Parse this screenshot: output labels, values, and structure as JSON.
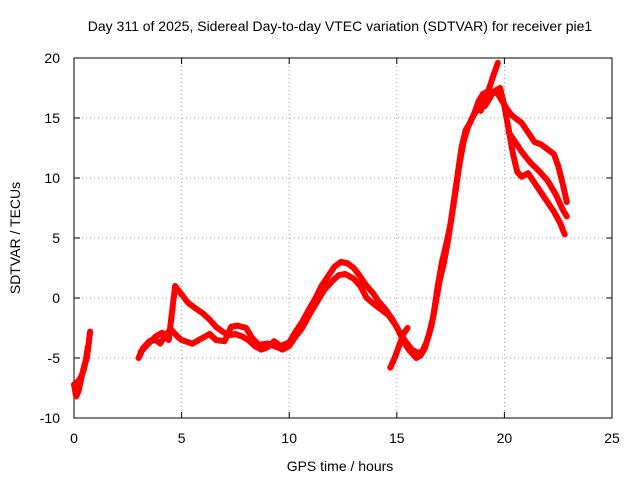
{
  "chart_data": {
    "type": "scatter",
    "title": "Day 311 of 2025, Sidereal Day-to-day VTEC variation (SDTVAR) for receiver pie1",
    "xlabel": "GPS time / hours",
    "ylabel": "SDTVAR / TECUs",
    "xlim": [
      0,
      25
    ],
    "ylim": [
      -10,
      20
    ],
    "xticks": [
      0,
      5,
      10,
      15,
      20,
      25
    ],
    "yticks": [
      -10,
      -5,
      0,
      5,
      10,
      15,
      20
    ],
    "grid": true,
    "marker": "+",
    "color": "#ff0000",
    "series": [
      {
        "name": "segment-1",
        "points": [
          [
            0.0,
            -7.2
          ],
          [
            0.1,
            -8.2
          ],
          [
            0.2,
            -7.8
          ],
          [
            0.3,
            -7.0
          ],
          [
            0.4,
            -6.2
          ],
          [
            0.5,
            -5.5
          ],
          [
            0.6,
            -5.0
          ],
          [
            0.7,
            -3.5
          ],
          [
            0.75,
            -2.8
          ]
        ]
      },
      {
        "name": "segment-1b",
        "points": [
          [
            0.05,
            -7.5
          ],
          [
            0.15,
            -7.0
          ],
          [
            0.25,
            -6.8
          ],
          [
            0.35,
            -6.5
          ],
          [
            0.45,
            -6.0
          ],
          [
            0.55,
            -5.2
          ],
          [
            0.65,
            -4.0
          ]
        ]
      },
      {
        "name": "segment-2",
        "points": [
          [
            3.0,
            -5.0
          ],
          [
            3.2,
            -4.2
          ],
          [
            3.5,
            -3.6
          ],
          [
            3.8,
            -3.5
          ],
          [
            4.0,
            -3.8
          ],
          [
            4.3,
            -3.0
          ],
          [
            4.5,
            -2.6
          ],
          [
            4.8,
            -3.2
          ],
          [
            5.0,
            -3.5
          ],
          [
            5.5,
            -3.8
          ],
          [
            6.0,
            -3.3
          ],
          [
            6.3,
            -3.0
          ],
          [
            6.6,
            -3.5
          ],
          [
            7.0,
            -3.6
          ],
          [
            7.3,
            -2.4
          ],
          [
            7.6,
            -2.3
          ],
          [
            8.0,
            -2.5
          ],
          [
            8.3,
            -3.4
          ],
          [
            8.6,
            -3.9
          ],
          [
            9.0,
            -3.8
          ],
          [
            9.3,
            -4.0
          ],
          [
            9.7,
            -4.3
          ],
          [
            10.0,
            -4.0
          ],
          [
            10.3,
            -3.2
          ],
          [
            10.6,
            -2.5
          ],
          [
            11.0,
            -1.2
          ],
          [
            11.3,
            -0.3
          ],
          [
            11.6,
            0.6
          ],
          [
            12.0,
            1.4
          ],
          [
            12.3,
            1.9
          ],
          [
            12.6,
            2.0
          ],
          [
            13.0,
            1.6
          ],
          [
            13.3,
            1.0
          ],
          [
            13.6,
            0.0
          ],
          [
            14.0,
            -0.6
          ],
          [
            14.3,
            -1.0
          ],
          [
            14.6,
            -1.4
          ],
          [
            15.0,
            -2.4
          ],
          [
            15.3,
            -3.6
          ],
          [
            15.6,
            -4.4
          ],
          [
            15.9,
            -5.0
          ],
          [
            16.1,
            -4.8
          ],
          [
            16.3,
            -4.2
          ],
          [
            16.5,
            -3.0
          ],
          [
            16.7,
            -1.5
          ],
          [
            16.9,
            1.0
          ],
          [
            17.1,
            3.0
          ],
          [
            17.3,
            4.5
          ],
          [
            17.5,
            6.2
          ],
          [
            17.7,
            8.5
          ],
          [
            17.9,
            11.0
          ],
          [
            18.1,
            13.0
          ],
          [
            18.3,
            14.2
          ],
          [
            18.5,
            15.0
          ],
          [
            18.7,
            15.6
          ],
          [
            18.9,
            16.0
          ],
          [
            19.1,
            16.0
          ],
          [
            19.3,
            16.6
          ],
          [
            19.5,
            17.2
          ],
          [
            19.7,
            17.0
          ],
          [
            19.9,
            16.4
          ],
          [
            20.1,
            15.8
          ],
          [
            20.3,
            15.3
          ],
          [
            20.5,
            15.0
          ],
          [
            20.8,
            14.6
          ],
          [
            21.1,
            13.8
          ],
          [
            21.4,
            13.0
          ],
          [
            21.7,
            12.8
          ],
          [
            22.0,
            12.4
          ],
          [
            22.3,
            12.0
          ],
          [
            22.5,
            11.0
          ],
          [
            22.7,
            9.6
          ],
          [
            22.9,
            8.0
          ]
        ]
      },
      {
        "name": "segment-3",
        "points": [
          [
            3.1,
            -4.5
          ],
          [
            3.4,
            -3.9
          ],
          [
            3.8,
            -3.2
          ],
          [
            4.1,
            -2.9
          ],
          [
            4.4,
            -3.5
          ],
          [
            4.7,
            1.0
          ],
          [
            5.0,
            0.3
          ],
          [
            5.3,
            -0.4
          ],
          [
            5.6,
            -0.8
          ],
          [
            6.0,
            -1.3
          ],
          [
            6.3,
            -1.8
          ],
          [
            6.6,
            -2.4
          ],
          [
            6.9,
            -2.8
          ],
          [
            7.2,
            -3.1
          ],
          [
            7.5,
            -3.0
          ],
          [
            7.8,
            -3.2
          ],
          [
            8.1,
            -3.5
          ],
          [
            8.4,
            -4.0
          ],
          [
            8.7,
            -4.3
          ],
          [
            9.0,
            -4.1
          ],
          [
            9.3,
            -3.6
          ],
          [
            9.6,
            -4.0
          ],
          [
            10.0,
            -3.7
          ],
          [
            10.3,
            -2.8
          ],
          [
            10.6,
            -2.0
          ],
          [
            10.9,
            -1.0
          ],
          [
            11.2,
            -0.1
          ],
          [
            11.5,
            1.0
          ],
          [
            11.8,
            1.8
          ],
          [
            12.1,
            2.6
          ],
          [
            12.4,
            3.0
          ],
          [
            12.7,
            2.9
          ],
          [
            13.0,
            2.5
          ],
          [
            13.3,
            1.8
          ],
          [
            13.6,
            1.0
          ],
          [
            13.9,
            0.4
          ],
          [
            14.2,
            -0.4
          ],
          [
            14.5,
            -1.0
          ],
          [
            14.8,
            -1.8
          ],
          [
            15.1,
            -2.8
          ],
          [
            15.4,
            -3.6
          ],
          [
            15.7,
            -4.3
          ],
          [
            16.0,
            -4.6
          ],
          [
            16.2,
            -4.4
          ],
          [
            16.4,
            -3.6
          ],
          [
            16.6,
            -2.4
          ],
          [
            16.8,
            -0.5
          ],
          [
            17.0,
            1.5
          ],
          [
            17.2,
            3.0
          ],
          [
            17.4,
            5.0
          ],
          [
            17.6,
            7.5
          ],
          [
            17.8,
            10.0
          ],
          [
            18.0,
            12.5
          ],
          [
            18.2,
            14.0
          ],
          [
            18.4,
            14.6
          ],
          [
            18.6,
            15.4
          ],
          [
            18.8,
            16.4
          ],
          [
            19.0,
            17.0
          ],
          [
            19.2,
            17.2
          ],
          [
            19.4,
            17.0
          ],
          [
            19.6,
            17.3
          ],
          [
            19.8,
            17.5
          ],
          [
            20.0,
            16.0
          ],
          [
            20.2,
            14.0
          ],
          [
            20.4,
            12.0
          ],
          [
            20.6,
            10.5
          ],
          [
            20.8,
            10.1
          ],
          [
            21.1,
            10.4
          ],
          [
            21.4,
            9.6
          ],
          [
            21.7,
            8.8
          ],
          [
            22.0,
            8.0
          ],
          [
            22.3,
            7.2
          ],
          [
            22.6,
            6.2
          ],
          [
            22.8,
            5.3
          ]
        ]
      },
      {
        "name": "segment-4",
        "points": [
          [
            14.7,
            -5.8
          ],
          [
            14.9,
            -5.0
          ],
          [
            15.1,
            -4.0
          ],
          [
            15.3,
            -3.0
          ],
          [
            15.5,
            -2.5
          ]
        ]
      },
      {
        "name": "segment-5",
        "points": [
          [
            18.9,
            15.6
          ],
          [
            19.1,
            16.5
          ],
          [
            19.3,
            17.5
          ],
          [
            19.5,
            18.6
          ],
          [
            19.7,
            19.6
          ]
        ]
      },
      {
        "name": "segment-6",
        "points": [
          [
            20.2,
            13.8
          ],
          [
            20.5,
            13.0
          ],
          [
            20.8,
            12.2
          ],
          [
            21.2,
            11.3
          ],
          [
            21.6,
            10.6
          ],
          [
            22.0,
            9.8
          ],
          [
            22.4,
            8.6
          ],
          [
            22.7,
            7.4
          ],
          [
            22.9,
            6.8
          ]
        ]
      }
    ]
  }
}
